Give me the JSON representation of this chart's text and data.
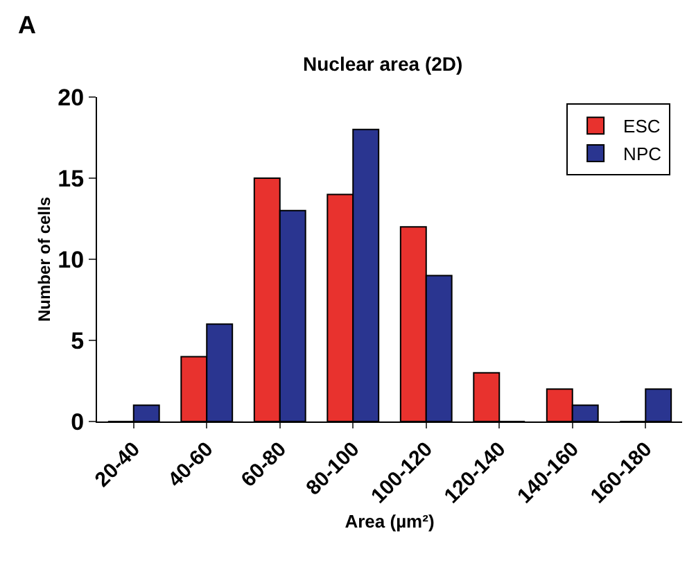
{
  "chart_data": {
    "type": "bar",
    "title": "Nuclear area (2D)",
    "xlabel": "Area (µm²)",
    "ylabel": "Number of cells",
    "annotations": [
      "A"
    ],
    "categories": [
      "20-40",
      "40-60",
      "60-80",
      "80-100",
      "100-120",
      "120-140",
      "140-160",
      "160-180"
    ],
    "series": [
      {
        "name": "ESC",
        "color": "#e8322e",
        "values": [
          0,
          4,
          15,
          14,
          12,
          3,
          2,
          0
        ]
      },
      {
        "name": "NPC",
        "color": "#2a3590",
        "values": [
          1,
          6,
          13,
          18,
          9,
          0,
          1,
          2
        ]
      }
    ],
    "ylim": [
      0,
      20
    ],
    "yticks": [
      0,
      5,
      10,
      15,
      20
    ],
    "grid": false,
    "legend": "top right"
  }
}
